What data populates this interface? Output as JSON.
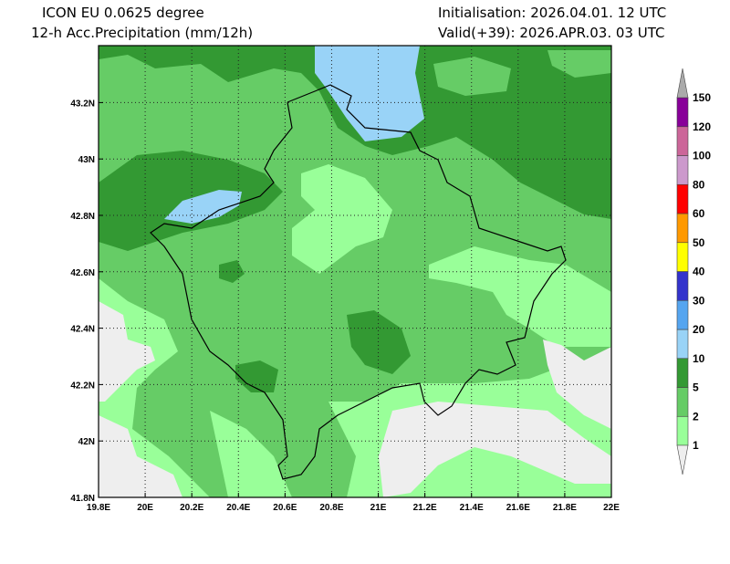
{
  "header": {
    "model": "ICON EU 0.0625 degree",
    "variable": "12-h Acc.Precipitation (mm/12h)",
    "init": "Initialisation: 2026.04.01. 12 UTC",
    "valid": "Valid(+39): 2026.APR.03. 03 UTC"
  },
  "axes": {
    "lon_labels": [
      "19.8E",
      "20E",
      "20.2E",
      "20.4E",
      "20.6E",
      "20.8E",
      "21E",
      "21.2E",
      "21.4E",
      "21.6E",
      "21.8E",
      "22E"
    ],
    "lat_labels": [
      "41.8N",
      "42N",
      "42.2N",
      "42.4N",
      "42.6N",
      "42.8N",
      "43N",
      "43.2N"
    ]
  },
  "legend": {
    "levels": [
      "1",
      "2",
      "5",
      "10",
      "20",
      "30",
      "40",
      "50",
      "60",
      "80",
      "100",
      "120",
      "150"
    ],
    "colors": [
      "#99ff99",
      "#66cc66",
      "#339933",
      "#99d3f7",
      "#55a5f0",
      "#3333cc",
      "#ffff00",
      "#ff9900",
      "#ff0000",
      "#cc99cc",
      "#cc6699",
      "#880099"
    ],
    "below_color": "#eeeeee",
    "above_color": "#aaaaaa"
  }
}
